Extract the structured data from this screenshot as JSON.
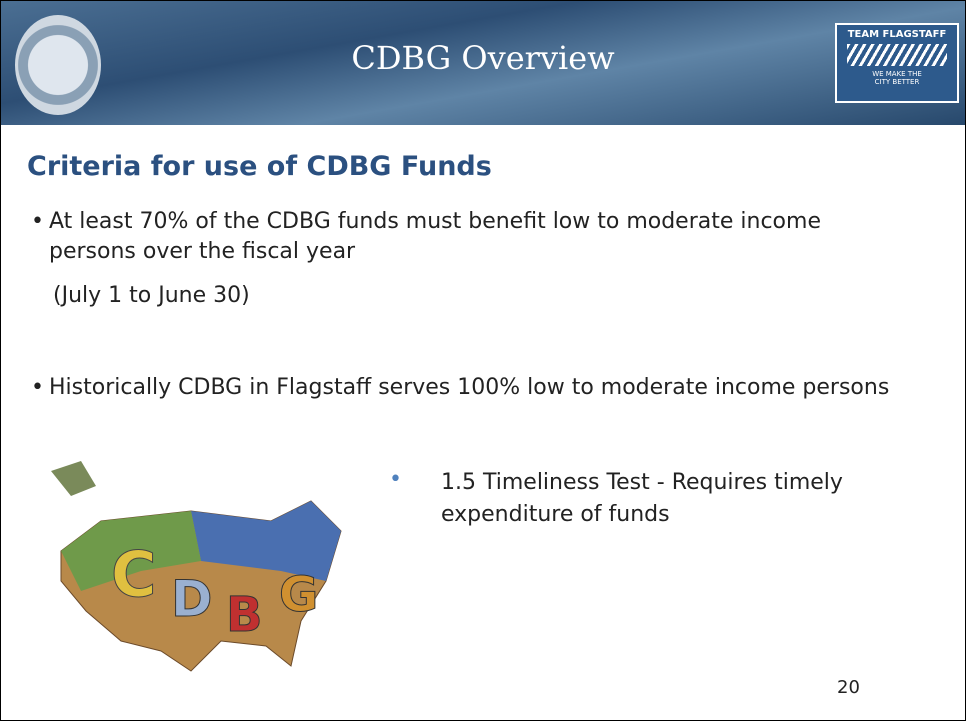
{
  "header": {
    "title": "CDBG Overview",
    "logo": {
      "line1": "TEAM FLAGSTAFF",
      "line2": "WE MAKE THE",
      "line3": "CITY BETTER"
    }
  },
  "heading": "Criteria for use of CDBG Funds",
  "bullets": [
    "At least 70% of the CDBG funds must benefit low to moderate income persons over the fiscal year",
    "Historically CDBG in Flagstaff serves 100% low to moderate income persons"
  ],
  "note": "(July 1 to June 30)",
  "image": {
    "letters": [
      "C",
      "D",
      "B",
      "G"
    ]
  },
  "side_bullet": "1.5 Timeliness Test - Requires timely expenditure of funds",
  "page_number": "20"
}
